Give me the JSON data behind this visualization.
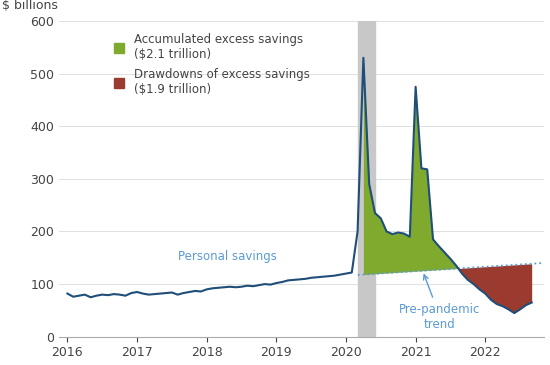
{
  "ylabel": "$ billions",
  "ylim": [
    0,
    600
  ],
  "yticks": [
    0,
    100,
    200,
    300,
    400,
    500,
    600
  ],
  "xlim_start": 2015.88,
  "xlim_end": 2022.85,
  "recession_start": 2020.17,
  "recession_end": 2020.42,
  "personal_savings_color": "#1f4e79",
  "trend_color": "#5b9bd5",
  "green_fill_color": "#7faa2e",
  "red_fill_color": "#9b3a2e",
  "legend_green_label": "Accumulated excess savings\n($2.1 trillion)",
  "legend_red_label": "Drawdowns of excess savings\n($1.9 trillion)",
  "annotation_personal": "Personal savings",
  "annotation_trend": "Pre-pandemic\ntrend",
  "background_color": "#ffffff",
  "trend_t0": 2016.0,
  "trend_v0": 82.0,
  "trend_slope": 8.5,
  "shade_start_t": 2020.17,
  "savings_data": [
    [
      2016,
      1,
      82
    ],
    [
      2016,
      2,
      76
    ],
    [
      2016,
      3,
      78
    ],
    [
      2016,
      4,
      80
    ],
    [
      2016,
      5,
      75
    ],
    [
      2016,
      6,
      78
    ],
    [
      2016,
      7,
      80
    ],
    [
      2016,
      8,
      79
    ],
    [
      2016,
      9,
      81
    ],
    [
      2016,
      10,
      80
    ],
    [
      2016,
      11,
      78
    ],
    [
      2016,
      12,
      83
    ],
    [
      2017,
      1,
      85
    ],
    [
      2017,
      2,
      82
    ],
    [
      2017,
      3,
      80
    ],
    [
      2017,
      4,
      81
    ],
    [
      2017,
      5,
      82
    ],
    [
      2017,
      6,
      83
    ],
    [
      2017,
      7,
      84
    ],
    [
      2017,
      8,
      80
    ],
    [
      2017,
      9,
      83
    ],
    [
      2017,
      10,
      85
    ],
    [
      2017,
      11,
      87
    ],
    [
      2017,
      12,
      86
    ],
    [
      2018,
      1,
      90
    ],
    [
      2018,
      2,
      92
    ],
    [
      2018,
      3,
      93
    ],
    [
      2018,
      4,
      94
    ],
    [
      2018,
      5,
      95
    ],
    [
      2018,
      6,
      94
    ],
    [
      2018,
      7,
      95
    ],
    [
      2018,
      8,
      97
    ],
    [
      2018,
      9,
      96
    ],
    [
      2018,
      10,
      98
    ],
    [
      2018,
      11,
      100
    ],
    [
      2018,
      12,
      99
    ],
    [
      2019,
      1,
      102
    ],
    [
      2019,
      2,
      104
    ],
    [
      2019,
      3,
      107
    ],
    [
      2019,
      4,
      108
    ],
    [
      2019,
      5,
      109
    ],
    [
      2019,
      6,
      110
    ],
    [
      2019,
      7,
      112
    ],
    [
      2019,
      8,
      113
    ],
    [
      2019,
      9,
      114
    ],
    [
      2019,
      10,
      115
    ],
    [
      2019,
      11,
      116
    ],
    [
      2019,
      12,
      118
    ],
    [
      2020,
      1,
      120
    ],
    [
      2020,
      2,
      122
    ],
    [
      2020,
      3,
      200
    ],
    [
      2020,
      4,
      530
    ],
    [
      2020,
      5,
      290
    ],
    [
      2020,
      6,
      235
    ],
    [
      2020,
      7,
      225
    ],
    [
      2020,
      8,
      200
    ],
    [
      2020,
      9,
      195
    ],
    [
      2020,
      10,
      198
    ],
    [
      2020,
      11,
      196
    ],
    [
      2020,
      12,
      190
    ],
    [
      2021,
      1,
      475
    ],
    [
      2021,
      2,
      320
    ],
    [
      2021,
      3,
      318
    ],
    [
      2021,
      4,
      185
    ],
    [
      2021,
      5,
      172
    ],
    [
      2021,
      6,
      160
    ],
    [
      2021,
      7,
      148
    ],
    [
      2021,
      8,
      135
    ],
    [
      2021,
      9,
      120
    ],
    [
      2021,
      10,
      108
    ],
    [
      2021,
      11,
      100
    ],
    [
      2021,
      12,
      90
    ],
    [
      2022,
      1,
      82
    ],
    [
      2022,
      2,
      70
    ],
    [
      2022,
      3,
      62
    ],
    [
      2022,
      4,
      58
    ],
    [
      2022,
      5,
      52
    ],
    [
      2022,
      6,
      45
    ],
    [
      2022,
      7,
      52
    ],
    [
      2022,
      8,
      60
    ],
    [
      2022,
      9,
      65
    ]
  ]
}
